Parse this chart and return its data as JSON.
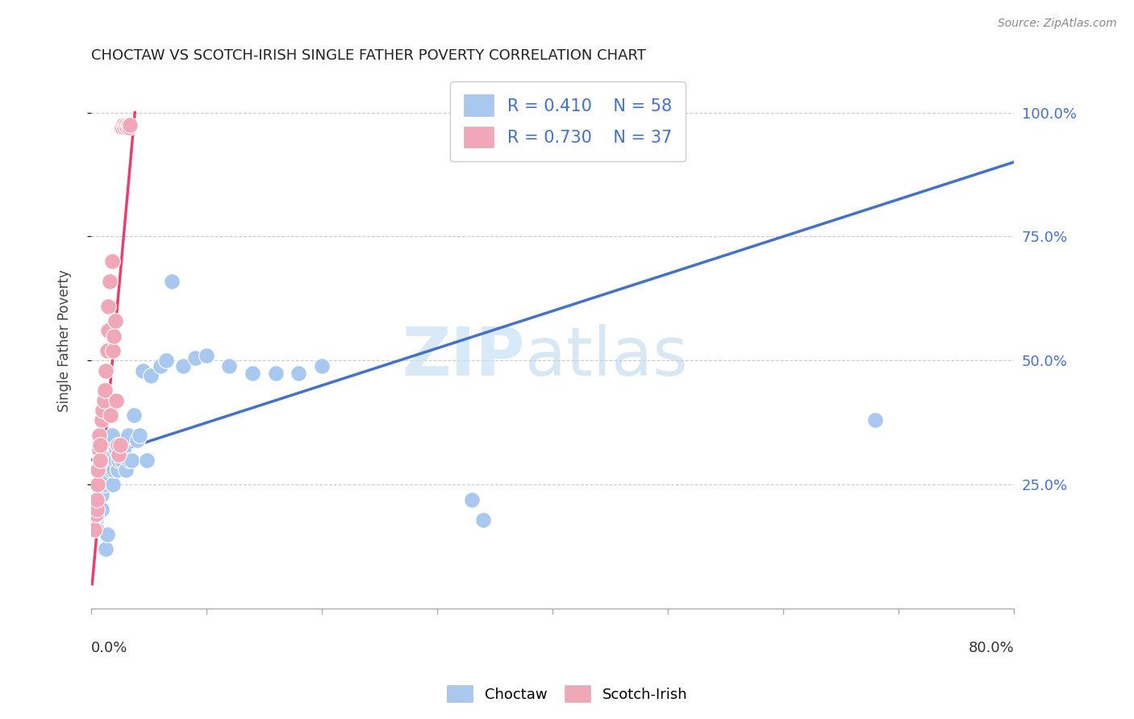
{
  "title": "CHOCTAW VS SCOTCH-IRISH SINGLE FATHER POVERTY CORRELATION CHART",
  "source": "Source: ZipAtlas.com",
  "ylabel": "Single Father Poverty",
  "legend_blue": {
    "R": 0.41,
    "N": 58,
    "label": "Choctaw"
  },
  "legend_pink": {
    "R": 0.73,
    "N": 37,
    "label": "Scotch-Irish"
  },
  "watermark_zip": "ZIP",
  "watermark_atlas": "atlas",
  "blue_color": "#A8C8F0",
  "pink_color": "#F0A8B8",
  "blue_line_color": "#4472C4",
  "pink_line_color": "#E8406A",
  "choctaw_x": [
    0.003,
    0.004,
    0.004,
    0.005,
    0.005,
    0.006,
    0.006,
    0.006,
    0.007,
    0.007,
    0.008,
    0.008,
    0.009,
    0.009,
    0.01,
    0.01,
    0.011,
    0.012,
    0.013,
    0.014,
    0.015,
    0.016,
    0.017,
    0.018,
    0.019,
    0.02,
    0.021,
    0.022,
    0.023,
    0.024,
    0.025,
    0.026,
    0.027,
    0.028,
    0.03,
    0.032,
    0.033,
    0.035,
    0.037,
    0.04,
    0.042,
    0.045,
    0.048,
    0.052,
    0.06,
    0.065,
    0.07,
    0.08,
    0.09,
    0.1,
    0.12,
    0.14,
    0.16,
    0.18,
    0.2,
    0.33,
    0.34,
    0.68
  ],
  "choctaw_y": [
    0.2,
    0.18,
    0.22,
    0.16,
    0.21,
    0.19,
    0.22,
    0.25,
    0.2,
    0.23,
    0.24,
    0.26,
    0.2,
    0.23,
    0.28,
    0.31,
    0.25,
    0.27,
    0.12,
    0.15,
    0.3,
    0.32,
    0.28,
    0.35,
    0.25,
    0.28,
    0.3,
    0.32,
    0.28,
    0.3,
    0.33,
    0.31,
    0.3,
    0.32,
    0.28,
    0.35,
    0.3,
    0.3,
    0.39,
    0.34,
    0.35,
    0.48,
    0.3,
    0.47,
    0.49,
    0.5,
    0.66,
    0.49,
    0.505,
    0.51,
    0.49,
    0.475,
    0.475,
    0.475,
    0.49,
    0.22,
    0.18,
    0.38
  ],
  "scotch_x": [
    0.003,
    0.004,
    0.005,
    0.005,
    0.006,
    0.006,
    0.007,
    0.007,
    0.008,
    0.008,
    0.009,
    0.01,
    0.011,
    0.012,
    0.013,
    0.014,
    0.015,
    0.015,
    0.016,
    0.017,
    0.018,
    0.019,
    0.02,
    0.021,
    0.022,
    0.023,
    0.024,
    0.025,
    0.026,
    0.027,
    0.028,
    0.029,
    0.03,
    0.031,
    0.032,
    0.033,
    0.034
  ],
  "scotch_y": [
    0.16,
    0.19,
    0.2,
    0.22,
    0.25,
    0.28,
    0.32,
    0.35,
    0.3,
    0.33,
    0.38,
    0.4,
    0.42,
    0.44,
    0.48,
    0.52,
    0.56,
    0.61,
    0.66,
    0.39,
    0.7,
    0.52,
    0.55,
    0.58,
    0.42,
    0.33,
    0.31,
    0.33,
    0.97,
    0.97,
    0.975,
    0.97,
    0.975,
    0.97,
    0.975,
    0.97,
    0.975
  ],
  "blue_line_x0": 0.0,
  "blue_line_x1": 0.8,
  "blue_line_y0": 0.3,
  "blue_line_y1": 0.9,
  "pink_line_x0": 0.001,
  "pink_line_x1": 0.038,
  "pink_line_y0": 0.05,
  "pink_line_y1": 1.0,
  "xlim": [
    0.0,
    0.8
  ],
  "ylim": [
    0.0,
    1.08
  ]
}
